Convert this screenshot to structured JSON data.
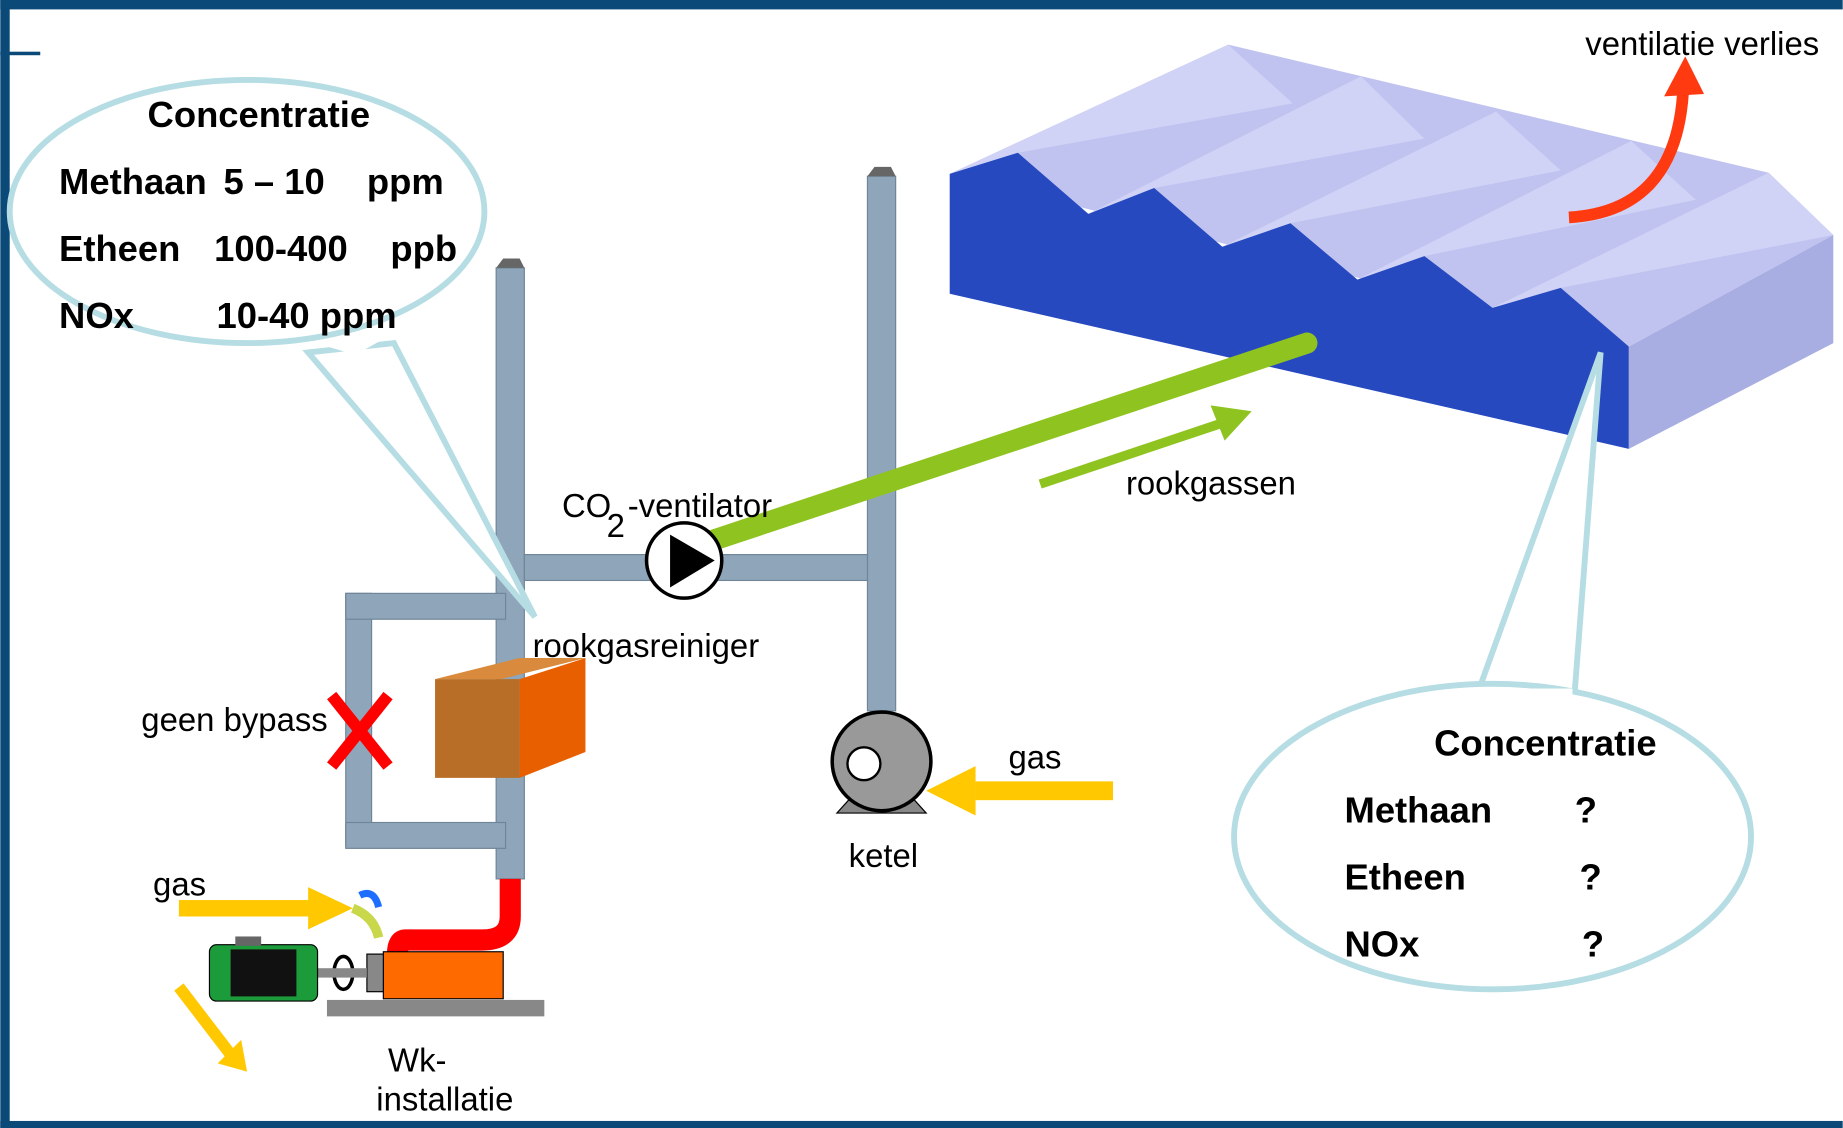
{
  "labels": {
    "ventilation_loss": "ventilatie verlies",
    "flue_gases": "rookgassen",
    "fan_co": "CO",
    "fan_sub": "2",
    "fan_rest": "-ventilator",
    "cleaner": "rookgasreiniger",
    "bypass": "geen bypass",
    "gas_left": "gas",
    "boiler": "ketel",
    "gas_right": "gas",
    "chp_line1": "Wk-",
    "chp_line2": "installatie"
  },
  "callouts": [
    {
      "title": "Concentratie",
      "rows": [
        {
          "name": "Methaan",
          "value": "5 – 10",
          "unit": "ppm"
        },
        {
          "name": "Etheen",
          "value": "100-400",
          "unit": "ppb"
        },
        {
          "name": "NOx",
          "value": "10-40 ppm"
        }
      ]
    },
    {
      "title": "Concentratie",
      "rows": [
        {
          "name": "Methaan",
          "value": "?"
        },
        {
          "name": "Etheen",
          "value": "?"
        },
        {
          "name": "NOx",
          "value": "?"
        }
      ]
    }
  ]
}
